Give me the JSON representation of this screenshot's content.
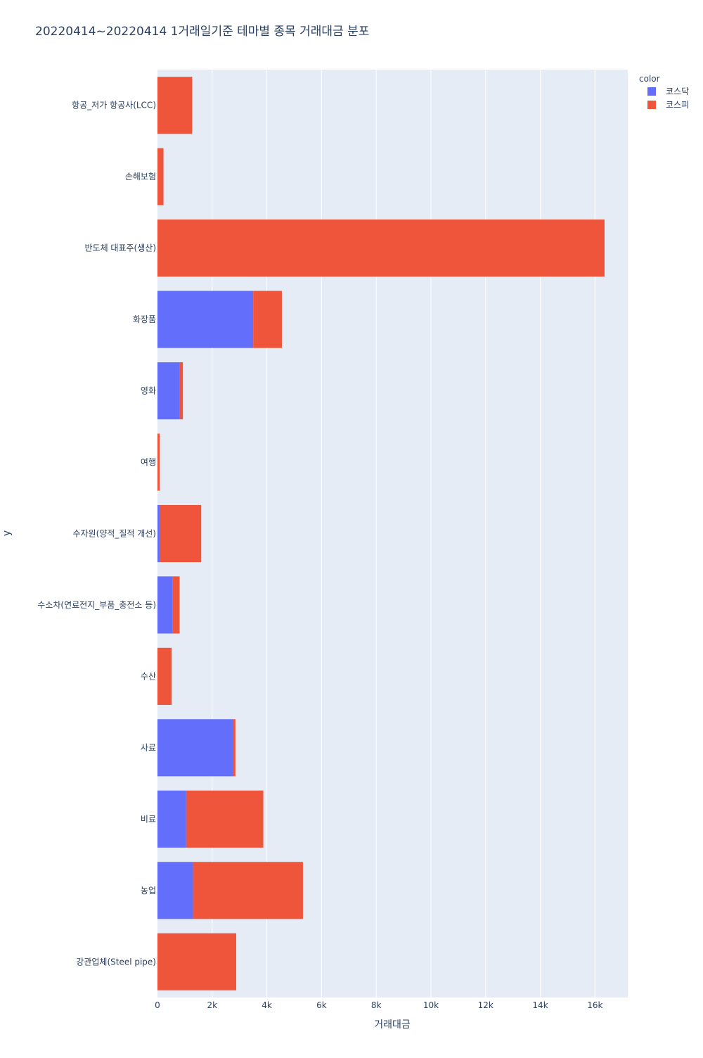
{
  "chart_data": {
    "type": "bar",
    "orientation": "horizontal",
    "barmode": "stack",
    "title": "20220414~20220414 1거래일기준 테마별 종목 거래대금 분포",
    "xlabel": "거래대금",
    "ylabel": "y",
    "xlim": [
      0,
      17200
    ],
    "x_ticks": [
      0,
      2000,
      4000,
      6000,
      8000,
      10000,
      12000,
      14000,
      16000
    ],
    "x_tick_labels": [
      "0",
      "2k",
      "4k",
      "6k",
      "8k",
      "10k",
      "12k",
      "14k",
      "16k"
    ],
    "grid": true,
    "legend": {
      "title": "color",
      "placement": "top-right"
    },
    "categories": [
      "항공_저가 항공사(LCC)",
      "손해보험",
      "반도체 대표주(생산)",
      "화장품",
      "영화",
      "여행",
      "수자원(양적_질적 개선)",
      "수소차(연료전지_부품_충전소 등)",
      "수산",
      "사료",
      "비료",
      "농업",
      "강관업체(Steel pipe)"
    ],
    "series": [
      {
        "name": "코스닥",
        "color": "#636efa",
        "values": [
          0,
          0,
          0,
          3500,
          820,
          0,
          100,
          550,
          0,
          2750,
          1050,
          1300,
          0
        ]
      },
      {
        "name": "코스피",
        "color": "#ef553b",
        "values": [
          1270,
          220,
          16350,
          1050,
          110,
          80,
          1500,
          260,
          520,
          100,
          2820,
          4020,
          2880
        ]
      }
    ]
  }
}
